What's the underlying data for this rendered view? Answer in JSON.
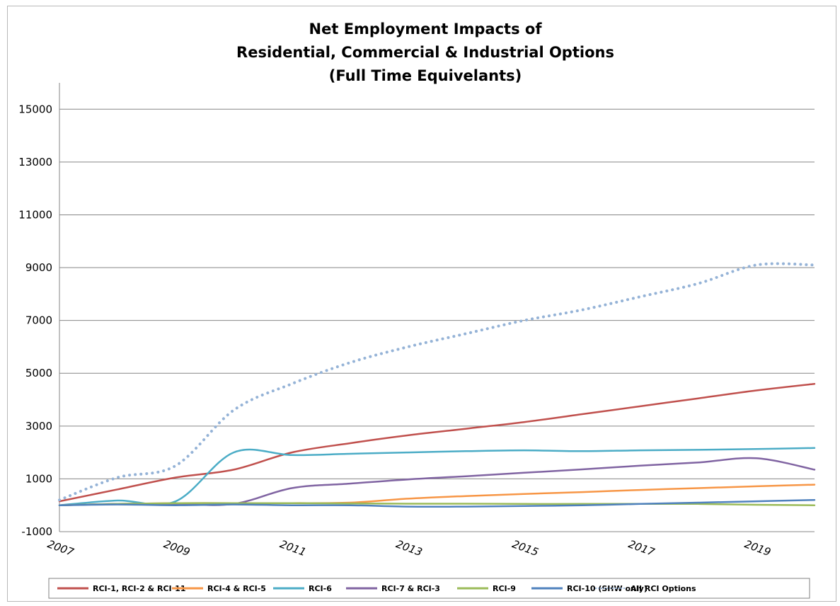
{
  "chart_data": {
    "type": "line",
    "title": [
      "Net Employment Impacts of",
      "Residential, Commercial & Industrial  Options",
      "(Full Time Equivelants)"
    ],
    "xlabel": "",
    "ylabel": "",
    "xlim": [
      2007,
      2020
    ],
    "ylim": [
      -1000,
      16000
    ],
    "yticks": [
      -1000,
      1000,
      3000,
      5000,
      7000,
      9000,
      11000,
      13000,
      15000
    ],
    "xticks": [
      2007,
      2009,
      2011,
      2013,
      2015,
      2017,
      2019
    ],
    "grid": true,
    "legend_position": "bottom",
    "x": [
      2007,
      2008,
      2009,
      2010,
      2011,
      2012,
      2013,
      2014,
      2015,
      2016,
      2017,
      2018,
      2019,
      2020
    ],
    "series": [
      {
        "name": "RCI-1, RCI-2 & RCI-11",
        "color": "#c0504d",
        "style": "solid",
        "values": [
          150,
          600,
          1050,
          1350,
          2000,
          2350,
          2650,
          2900,
          3150,
          3450,
          3750,
          4050,
          4350,
          4600
        ]
      },
      {
        "name": "RCI-4 & RCI-5",
        "color": "#f79646",
        "style": "solid",
        "values": [
          0,
          50,
          80,
          80,
          80,
          100,
          250,
          350,
          430,
          500,
          580,
          650,
          720,
          780
        ]
      },
      {
        "name": "RCI-6",
        "color": "#4bacc6",
        "style": "solid",
        "values": [
          0,
          180,
          150,
          2000,
          1900,
          1950,
          2000,
          2050,
          2080,
          2050,
          2080,
          2100,
          2130,
          2170
        ]
      },
      {
        "name": "RCI-7 & RCI-3",
        "color": "#8064a2",
        "style": "solid",
        "values": [
          0,
          50,
          50,
          50,
          650,
          820,
          980,
          1100,
          1230,
          1360,
          1500,
          1620,
          1780,
          1350
        ]
      },
      {
        "name": "RCI-9",
        "color": "#9bbb59",
        "style": "solid",
        "values": [
          0,
          50,
          80,
          80,
          80,
          70,
          60,
          60,
          50,
          50,
          50,
          50,
          20,
          0
        ]
      },
      {
        "name": "RCI-10 (SHW only)",
        "color": "#4f81bd",
        "style": "solid",
        "values": [
          0,
          30,
          0,
          30,
          0,
          0,
          -50,
          -50,
          -30,
          0,
          50,
          100,
          150,
          200
        ]
      },
      {
        "name": "All RCI Options",
        "color": "#95b3d7",
        "style": "dotted",
        "values": [
          200,
          1050,
          1500,
          3600,
          4600,
          5400,
          6000,
          6500,
          7000,
          7400,
          7900,
          8400,
          9100,
          9100
        ]
      }
    ]
  }
}
